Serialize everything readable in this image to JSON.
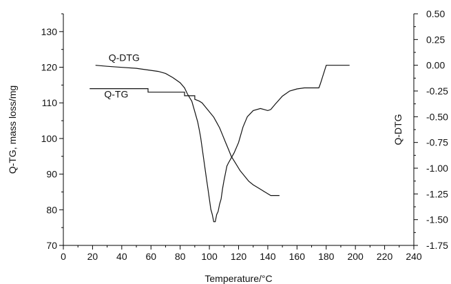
{
  "chart_data": {
    "type": "line",
    "xlabel": "Temperature/°C",
    "ylabel_left": "Q-TG, mass loss/mg",
    "ylabel_right": "Q-DTG",
    "xlim": [
      0,
      240
    ],
    "ylim_left": [
      70,
      135
    ],
    "ylim_right": [
      -1.75,
      0.5
    ],
    "x_ticks": [
      "0",
      "20",
      "40",
      "60",
      "80",
      "100",
      "120",
      "140",
      "160",
      "180",
      "200",
      "220",
      "240"
    ],
    "y_left_ticks": [
      "70",
      "80",
      "90",
      "100",
      "110",
      "120",
      "130"
    ],
    "y_right_ticks": [
      "-1.75",
      "-1.50",
      "-1.25",
      "-1.00",
      "-0.75",
      "-0.50",
      "-0.25",
      "0.00",
      "0.25",
      "0.50"
    ],
    "grid": false,
    "series": [
      {
        "name": "Q-TG",
        "axis": "left",
        "label_at": [
          28,
          111.5
        ],
        "x": [
          18,
          58,
          58,
          83,
          83,
          90,
          90,
          93,
          95,
          97,
          99,
          101,
          103,
          105,
          107,
          109,
          111,
          113,
          115,
          118,
          121,
          124,
          127,
          130,
          134,
          138,
          142,
          148
        ],
        "y": [
          114,
          114,
          113,
          113,
          112,
          112,
          111,
          110.5,
          110,
          109,
          108,
          107,
          106,
          104.5,
          103,
          101,
          99,
          97,
          95,
          93,
          91,
          89.5,
          88,
          87,
          86,
          85,
          84,
          84
        ]
      },
      {
        "name": "Q-DTG",
        "axis": "right",
        "label_at": [
          31,
          0.04
        ],
        "x": [
          22,
          30,
          40,
          50,
          55,
          60,
          65,
          70,
          75,
          80,
          83,
          85,
          88,
          90,
          92,
          93,
          94,
          95,
          96,
          97,
          98,
          99,
          100,
          101,
          102,
          103,
          104,
          105,
          106,
          107,
          108,
          109,
          110,
          111,
          112,
          113,
          115,
          117,
          120,
          123,
          126,
          130,
          135,
          140,
          142,
          145,
          150,
          155,
          160,
          165,
          170,
          175,
          176,
          180,
          185,
          190,
          196
        ],
        "y": [
          0.0,
          -0.01,
          -0.02,
          -0.03,
          -0.04,
          -0.05,
          -0.06,
          -0.08,
          -0.12,
          -0.17,
          -0.22,
          -0.28,
          -0.35,
          -0.45,
          -0.55,
          -0.62,
          -0.7,
          -0.8,
          -0.9,
          -1.0,
          -1.1,
          -1.2,
          -1.3,
          -1.4,
          -1.45,
          -1.52,
          -1.52,
          -1.45,
          -1.42,
          -1.35,
          -1.3,
          -1.2,
          -1.12,
          -1.05,
          -0.98,
          -0.95,
          -0.9,
          -0.85,
          -0.75,
          -0.6,
          -0.5,
          -0.44,
          -0.42,
          -0.44,
          -0.43,
          -0.38,
          -0.3,
          -0.25,
          -0.23,
          -0.22,
          -0.22,
          -0.22,
          -0.18,
          0.0,
          0.0,
          0.0,
          0.0
        ]
      }
    ]
  }
}
